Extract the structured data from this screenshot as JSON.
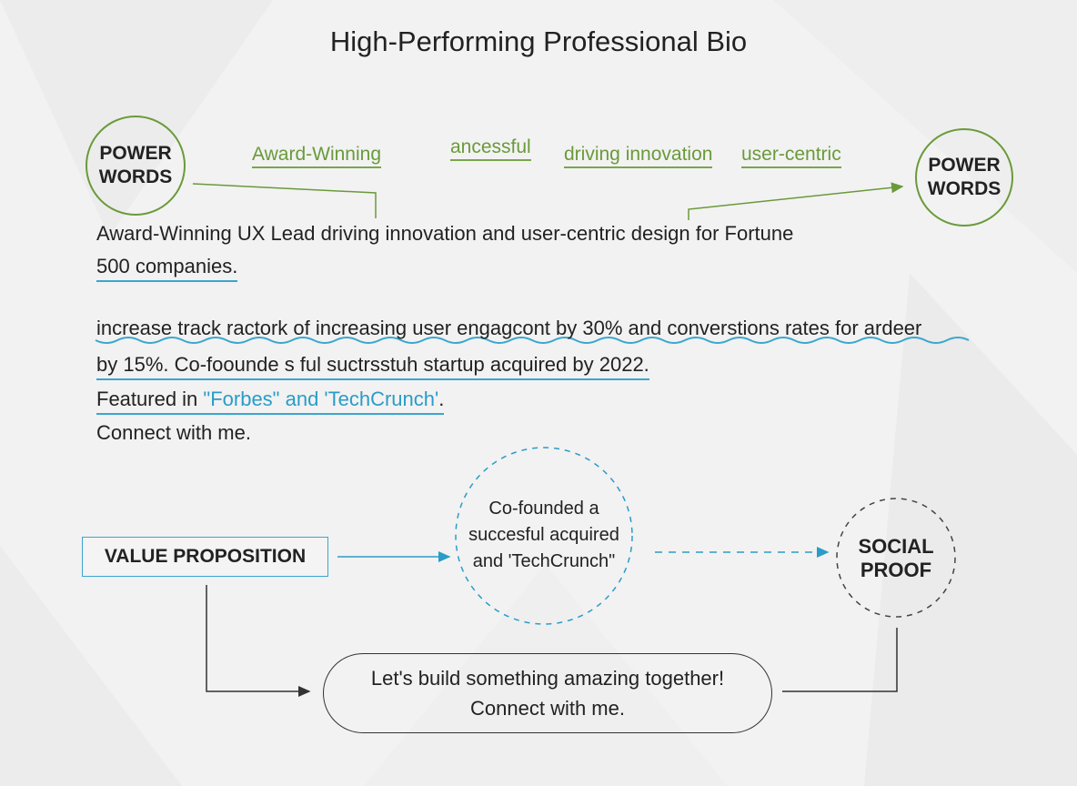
{
  "title": "High-Performing Professional Bio",
  "colors": {
    "green": "#6a9a3a",
    "blue": "#2a9cc8",
    "text": "#222222",
    "background": "#f2f2f2"
  },
  "power_words_left": {
    "line1": "POWER",
    "line2": "WORDS"
  },
  "power_words_right": {
    "line1": "POWER",
    "line2": "WORDS"
  },
  "keywords": [
    "Award-Winning",
    "ancessful",
    "driving innovation",
    "user-centric"
  ],
  "bio": {
    "line1": "Award-Winning UX Lead driving innovation and user-centric design for Fortune",
    "line2": "500 companies.",
    "line3": "increase track ractork of increasing user engagcont by 30% and converstions rates for  ardeer",
    "line4": "by 15%. Co-foounde s ful  suctrsstuh startup acquired by 2022.",
    "line5_prefix": "Featured in ",
    "line5_highlight": "\"Forbes\"  and 'TechCrunch'",
    "line5_suffix": ".",
    "line6": "Connect with me."
  },
  "value_proposition": "VALUE PROPOSITION",
  "middle_circle": {
    "line1": "Co-founded a",
    "line2": "succesful acquired",
    "line3": "and 'TechCrunch\""
  },
  "social_proof": {
    "line1": "SOCIAL",
    "line2": "PROOF"
  },
  "cta": {
    "line1": "Let's build something amazing together!",
    "line2": "Connect with me."
  }
}
